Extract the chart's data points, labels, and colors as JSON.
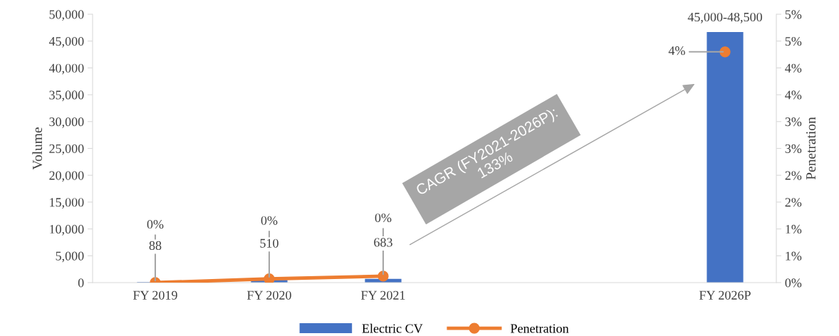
{
  "chart_data": {
    "type": "bar",
    "categories": [
      "FY 2019",
      "FY 2020",
      "FY 2021",
      null,
      null,
      "FY 2026P"
    ],
    "ylabel": "Volume",
    "y2label": "Penetration",
    "ylim": [
      0,
      50000
    ],
    "yticks": [
      {
        "value": 0,
        "label": "0"
      },
      {
        "value": 5000,
        "label": "5,000"
      },
      {
        "value": 10000,
        "label": "10,000"
      },
      {
        "value": 15000,
        "label": "15,000"
      },
      {
        "value": 20000,
        "label": "20,000"
      },
      {
        "value": 25000,
        "label": "25,000"
      },
      {
        "value": 30000,
        "label": "30,000"
      },
      {
        "value": 35000,
        "label": "35,000"
      },
      {
        "value": 40000,
        "label": "40,000"
      },
      {
        "value": 45000,
        "label": "45,000"
      },
      {
        "value": 50000,
        "label": "50,000"
      }
    ],
    "y2lim": [
      0,
      5
    ],
    "y2ticks": [
      {
        "value": 0,
        "label": "0%"
      },
      {
        "value": 0.5,
        "label": "1%"
      },
      {
        "value": 1,
        "label": "1%"
      },
      {
        "value": 1.5,
        "label": "2%"
      },
      {
        "value": 2,
        "label": "2%"
      },
      {
        "value": 2.5,
        "label": "3%"
      },
      {
        "value": 3,
        "label": "3%"
      },
      {
        "value": 3.5,
        "label": "4%"
      },
      {
        "value": 4,
        "label": "4%"
      },
      {
        "value": 4.5,
        "label": "5%"
      },
      {
        "value": 5,
        "label": "5%"
      }
    ],
    "series": [
      {
        "name": "Electric CV",
        "color": "#4472c4",
        "values": [
          88,
          510,
          683,
          null,
          null,
          46700
        ],
        "value_labels": [
          "88",
          "510",
          "683",
          null,
          null,
          "45,000-48,500"
        ]
      },
      {
        "name": "Penetration",
        "type": "line",
        "axis": "y2",
        "color": "#ed7d31",
        "marker": "circle",
        "values": [
          0,
          0.07,
          0.12,
          null,
          null,
          4.3
        ],
        "value_labels": [
          "0%",
          "0%",
          "0%",
          null,
          null,
          "4%"
        ]
      }
    ],
    "annotations": [
      "CAGR (FY2021-2026P):\n133%"
    ],
    "grid": false,
    "legend": "bottom"
  }
}
